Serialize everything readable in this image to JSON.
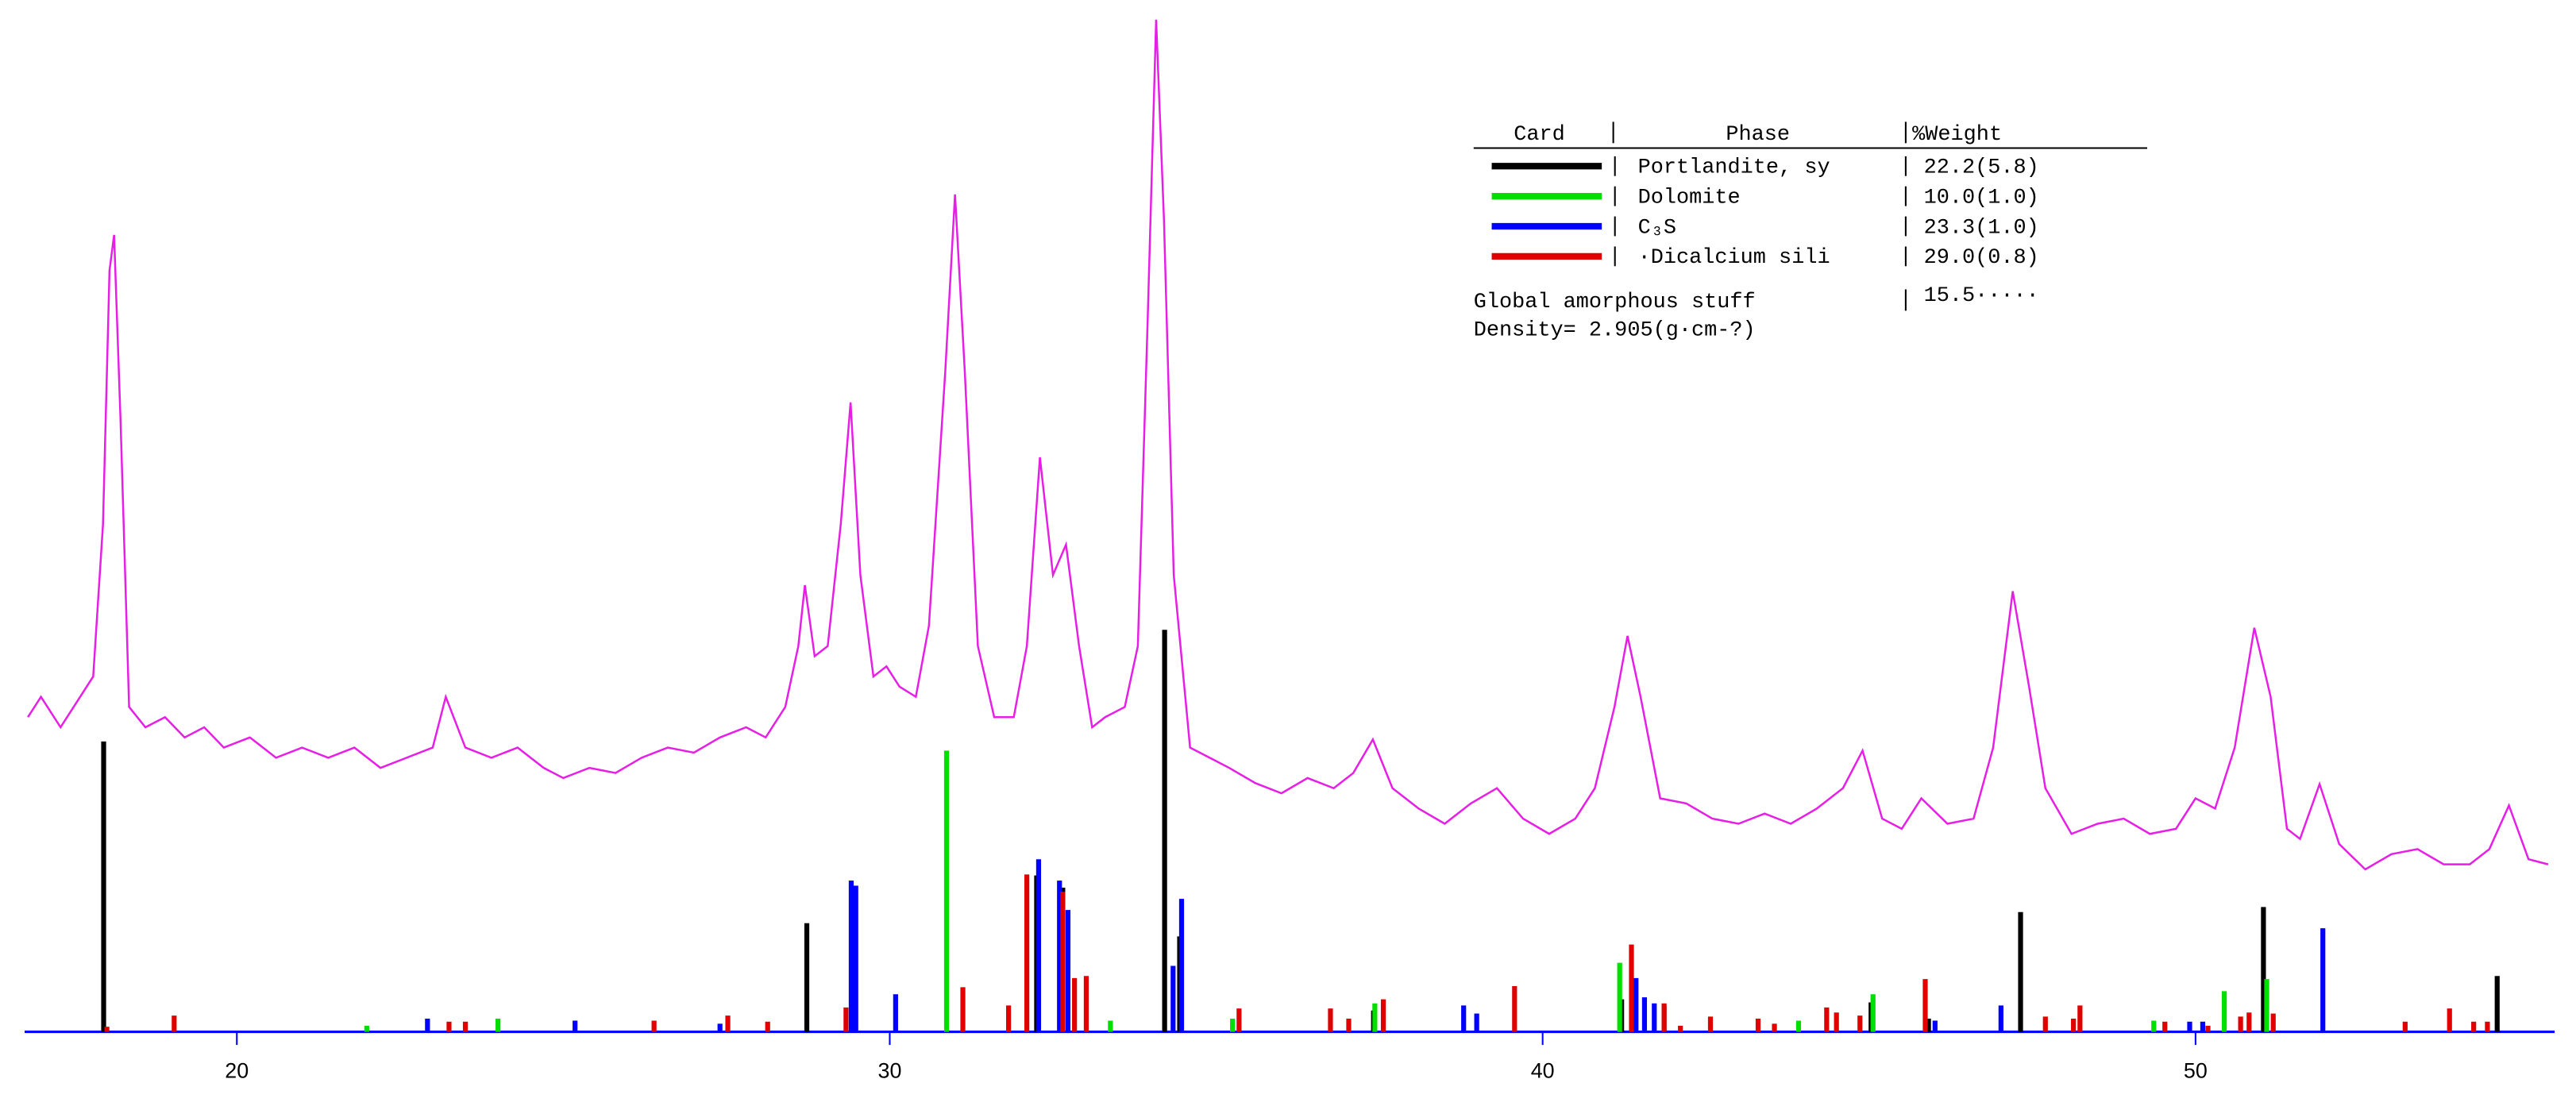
{
  "chart_data": {
    "type": "line",
    "xlim": [
      16.75,
      55.5
    ],
    "ylim": [
      0,
      100
    ],
    "xticks": [
      20,
      30,
      40,
      50
    ],
    "legend_header": [
      "Card",
      "Phase",
      "%Weight"
    ],
    "amorphous": {
      "label": "Global amorphous stuff",
      "weight": "15.5·····"
    },
    "density": "Density= 2.905(g·cm-?)",
    "series": [
      {
        "style": "line",
        "color": "#e61ee6",
        "x": [
          16.8,
          17.0,
          17.3,
          17.6,
          17.8,
          17.95,
          18.05,
          18.12,
          18.22,
          18.35,
          18.6,
          18.9,
          19.2,
          19.5,
          19.8,
          20.2,
          20.6,
          21.0,
          21.4,
          21.8,
          22.2,
          22.6,
          23.0,
          23.2,
          23.5,
          23.9,
          24.3,
          24.7,
          25.0,
          25.4,
          25.8,
          26.2,
          26.6,
          27.0,
          27.4,
          27.8,
          28.1,
          28.4,
          28.6,
          28.7,
          28.85,
          29.05,
          29.25,
          29.4,
          29.55,
          29.75,
          29.95,
          30.15,
          30.4,
          30.6,
          30.85,
          31.0,
          31.15,
          31.35,
          31.6,
          31.9,
          32.1,
          32.3,
          32.5,
          32.7,
          32.9,
          33.1,
          33.3,
          33.6,
          33.8,
          33.95,
          34.08,
          34.2,
          34.35,
          34.6,
          34.9,
          35.2,
          35.6,
          36.0,
          36.4,
          36.8,
          37.1,
          37.4,
          37.7,
          38.1,
          38.5,
          38.9,
          39.3,
          39.7,
          40.1,
          40.5,
          40.8,
          41.1,
          41.3,
          41.5,
          41.8,
          42.2,
          42.6,
          43.0,
          43.4,
          43.8,
          44.2,
          44.6,
          44.9,
          45.2,
          45.5,
          45.8,
          46.2,
          46.6,
          46.9,
          47.2,
          47.45,
          47.7,
          48.1,
          48.5,
          48.9,
          49.3,
          49.7,
          50.0,
          50.3,
          50.6,
          50.9,
          51.15,
          51.4,
          51.6,
          51.9,
          52.2,
          52.6,
          53.0,
          53.4,
          53.8,
          54.2,
          54.5,
          54.8,
          55.1,
          55.4
        ],
        "values": [
          31,
          33,
          30,
          33,
          35,
          50,
          75,
          78.5,
          60,
          32,
          30,
          31,
          29,
          30,
          28,
          29,
          27,
          28,
          27,
          28,
          26,
          27,
          28,
          33,
          28,
          27,
          28,
          26,
          25,
          26,
          25.5,
          27,
          28,
          27.5,
          29,
          30,
          29,
          32,
          38,
          44,
          37,
          38,
          50,
          62,
          45,
          35,
          36,
          34,
          33,
          40,
          65,
          82.5,
          65,
          38,
          31,
          31,
          38,
          56.6,
          45,
          48,
          38,
          30,
          31,
          32,
          38,
          70,
          99.7,
          80,
          45,
          28,
          27,
          26,
          24.5,
          23.5,
          25,
          24,
          25.5,
          28.8,
          24,
          22,
          20.5,
          22.5,
          24,
          21,
          19.5,
          21,
          24,
          32,
          39,
          33,
          23,
          22.5,
          21,
          20.5,
          21.5,
          20.5,
          22,
          24,
          27.7,
          21,
          20,
          23,
          20.5,
          21,
          28,
          43.4,
          34,
          24,
          19.5,
          20.5,
          21,
          19.5,
          20,
          23,
          22,
          28,
          39.8,
          33,
          20,
          19,
          24.4,
          18.5,
          16,
          17.5,
          18,
          16.5,
          16.5,
          18,
          22.3,
          17,
          16.5
        ]
      },
      {
        "style": "sticks",
        "name": "Portlandite, sy",
        "weight": "22.2(5.8)",
        "color": "#000000",
        "x": [
          17.96,
          28.73,
          32.25,
          32.65,
          34.21,
          34.44,
          37.41,
          41.21,
          41.86,
          45.03,
          45.91,
          47.32,
          51.04,
          54.62
        ],
        "values": [
          28.6,
          10.7,
          15.4,
          14.2,
          39.6,
          9.4,
          2.1,
          3.2,
          2.6,
          2.9,
          1.3,
          11.8,
          12.3,
          5.5
        ]
      },
      {
        "style": "sticks",
        "name": "Dolomite",
        "weight": "10.0(1.0)",
        "color": "#00e000",
        "x": [
          21.99,
          24.0,
          30.87,
          33.38,
          35.25,
          37.43,
          41.18,
          43.92,
          45.06,
          49.36,
          50.44,
          51.09
        ],
        "values": [
          0.6,
          1.3,
          27.7,
          1.1,
          1.3,
          2.8,
          6.8,
          1.1,
          3.7,
          1.1,
          4.0,
          5.2
        ]
      },
      {
        "style": "sticks",
        "name": "C₃S",
        "weight": "23.3(1.0)",
        "color": "#0000ff",
        "x": [
          22.92,
          25.18,
          27.4,
          29.41,
          29.48,
          30.09,
          32.28,
          32.6,
          32.73,
          34.34,
          34.47,
          38.79,
          38.99,
          41.43,
          41.56,
          41.71,
          46.01,
          47.02,
          49.91,
          50.11,
          51.95
        ],
        "values": [
          1.3,
          1.1,
          0.8,
          14.9,
          14.4,
          3.7,
          17.0,
          14.9,
          12.0,
          6.5,
          13.1,
          2.6,
          1.8,
          5.3,
          3.4,
          2.8,
          1.1,
          2.6,
          1.0,
          1.0,
          10.2
        ]
      },
      {
        "style": "sticks",
        "name": "·Dicalcium sili",
        "weight": "29.0(0.8)",
        "color": "#e00000",
        "x": [
          18.01,
          19.04,
          23.25,
          23.5,
          26.39,
          27.52,
          28.13,
          29.33,
          31.12,
          31.82,
          32.1,
          32.65,
          32.83,
          33.01,
          35.35,
          36.75,
          37.03,
          37.56,
          39.57,
          41.36,
          41.86,
          42.11,
          42.57,
          43.3,
          43.55,
          44.35,
          44.5,
          44.86,
          45.86,
          47.7,
          48.13,
          48.23,
          49.53,
          50.19,
          50.69,
          50.82,
          51.19,
          53.21,
          53.89,
          54.26,
          54.47
        ],
        "values": [
          0.5,
          1.6,
          1.0,
          1.0,
          1.1,
          1.6,
          1.0,
          2.4,
          4.4,
          2.6,
          15.5,
          13.8,
          5.3,
          5.5,
          2.3,
          2.3,
          1.3,
          3.2,
          4.5,
          8.6,
          2.8,
          0.6,
          1.5,
          1.3,
          0.8,
          2.4,
          1.9,
          1.6,
          5.2,
          1.5,
          1.3,
          2.6,
          1.0,
          0.6,
          1.5,
          1.9,
          1.8,
          1.0,
          2.3,
          1.0,
          1.0
        ]
      }
    ]
  }
}
